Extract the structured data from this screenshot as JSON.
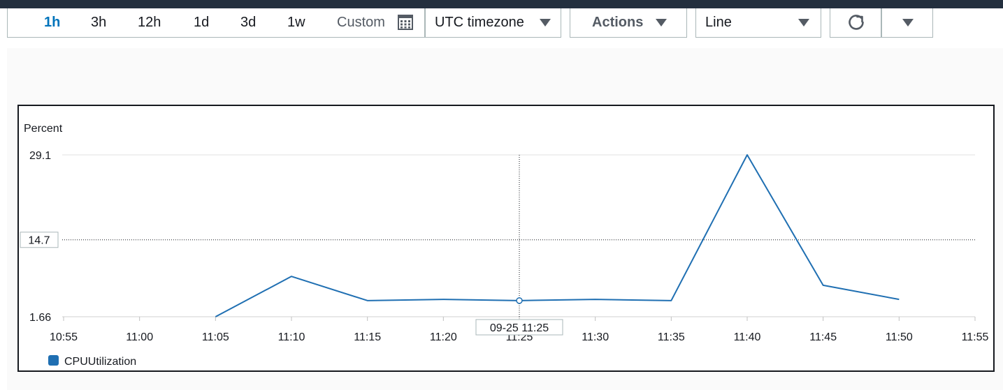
{
  "toolbar": {
    "ranges": [
      {
        "label": "1h",
        "active": true
      },
      {
        "label": "3h",
        "active": false
      },
      {
        "label": "12h",
        "active": false
      },
      {
        "label": "1d",
        "active": false
      },
      {
        "label": "3d",
        "active": false
      },
      {
        "label": "1w",
        "active": false
      }
    ],
    "custom_label": "Custom",
    "timezone_label": "UTC timezone",
    "actions_label": "Actions",
    "graph_type_label": "Line"
  },
  "chart_data": {
    "type": "line",
    "ylabel": "Percent",
    "x": [
      "10:55",
      "11:00",
      "11:05",
      "11:10",
      "11:15",
      "11:20",
      "11:25",
      "11:30",
      "11:35",
      "11:40",
      "11:45",
      "11:50",
      "11:55"
    ],
    "y_ticks": [
      "29.1",
      "1.66"
    ],
    "ylim": [
      1.66,
      29.1
    ],
    "series": [
      {
        "name": "CPUUtilization",
        "color": "#1f6fb2",
        "points": [
          {
            "x": "11:05",
            "y": 1.66
          },
          {
            "x": "11:10",
            "y": 8.5
          },
          {
            "x": "11:15",
            "y": 4.4
          },
          {
            "x": "11:20",
            "y": 4.6
          },
          {
            "x": "11:25",
            "y": 4.4
          },
          {
            "x": "11:30",
            "y": 4.6
          },
          {
            "x": "11:35",
            "y": 4.4
          },
          {
            "x": "11:40",
            "y": 29.1
          },
          {
            "x": "11:45",
            "y": 7.0
          },
          {
            "x": "11:50",
            "y": 4.6
          }
        ]
      }
    ],
    "crosshair": {
      "x_label": "09-25 11:25",
      "y_label": "14.7",
      "x": "11:25",
      "y": 14.7
    },
    "grid": true,
    "legend": "bottom-left"
  }
}
